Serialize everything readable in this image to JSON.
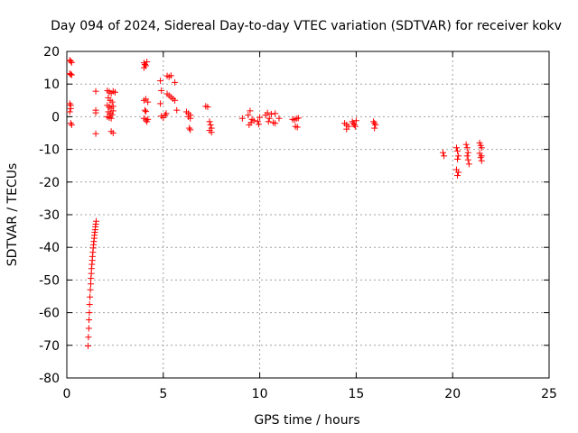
{
  "chart_data": {
    "type": "scatter",
    "title": "Day 094 of 2024, Sidereal Day-to-day VTEC variation (SDTVAR) for receiver kokv",
    "xlabel": "GPS time / hours",
    "ylabel": "SDTVAR / TECUs",
    "xlim": [
      0,
      25
    ],
    "ylim": [
      -80,
      20
    ],
    "xticks": [
      0,
      5,
      10,
      15,
      20,
      25
    ],
    "yticks": [
      20,
      10,
      0,
      -10,
      -20,
      -30,
      -40,
      -50,
      -60,
      -70,
      -80
    ],
    "grid": true,
    "marker": "+",
    "color": "#ff0000",
    "series": [
      {
        "name": "SDTVAR",
        "points": [
          [
            0.15,
            17.3
          ],
          [
            0.2,
            17.0
          ],
          [
            0.25,
            16.6
          ],
          [
            0.15,
            13.2
          ],
          [
            0.2,
            13.0
          ],
          [
            0.25,
            12.8
          ],
          [
            0.15,
            4.0
          ],
          [
            0.2,
            3.5
          ],
          [
            0.2,
            2.5
          ],
          [
            0.15,
            1.5
          ],
          [
            0.2,
            -2.0
          ],
          [
            0.25,
            -2.5
          ],
          [
            1.1,
            -70.2
          ],
          [
            1.12,
            -67.5
          ],
          [
            1.14,
            -64.8
          ],
          [
            1.15,
            -62.2
          ],
          [
            1.17,
            -60.0
          ],
          [
            1.18,
            -57.5
          ],
          [
            1.2,
            -55.2
          ],
          [
            1.22,
            -53.0
          ],
          [
            1.24,
            -51.2
          ],
          [
            1.25,
            -49.5
          ],
          [
            1.27,
            -48.0
          ],
          [
            1.28,
            -46.5
          ],
          [
            1.3,
            -45.2
          ],
          [
            1.32,
            -44.0
          ],
          [
            1.33,
            -42.8
          ],
          [
            1.35,
            -41.5
          ],
          [
            1.37,
            -40.2
          ],
          [
            1.38,
            -39.2
          ],
          [
            1.4,
            -38.2
          ],
          [
            1.42,
            -37.2
          ],
          [
            1.43,
            -36.3
          ],
          [
            1.45,
            -35.4
          ],
          [
            1.47,
            -34.6
          ],
          [
            1.48,
            -33.7
          ],
          [
            1.5,
            -32.9
          ],
          [
            1.52,
            -32.0
          ],
          [
            1.5,
            7.8
          ],
          [
            1.5,
            2.0
          ],
          [
            1.5,
            1.2
          ],
          [
            1.5,
            -5.2
          ],
          [
            2.1,
            8.0
          ],
          [
            2.2,
            7.6
          ],
          [
            2.3,
            7.2
          ],
          [
            2.4,
            7.8
          ],
          [
            2.5,
            7.5
          ],
          [
            2.15,
            5.8
          ],
          [
            2.25,
            5.0
          ],
          [
            2.35,
            4.5
          ],
          [
            2.1,
            3.5
          ],
          [
            2.2,
            3.0
          ],
          [
            2.3,
            2.6
          ],
          [
            2.4,
            3.2
          ],
          [
            2.15,
            1.5
          ],
          [
            2.25,
            1.0
          ],
          [
            2.35,
            0.6
          ],
          [
            2.1,
            0.0
          ],
          [
            2.2,
            -0.3
          ],
          [
            2.3,
            -0.5
          ],
          [
            2.4,
            1.8
          ],
          [
            2.3,
            -4.5
          ],
          [
            2.4,
            -5.0
          ],
          [
            4.0,
            16.5
          ],
          [
            4.05,
            16.0
          ],
          [
            4.1,
            15.6
          ],
          [
            4.0,
            15.0
          ],
          [
            4.15,
            16.8
          ],
          [
            4.0,
            5.0
          ],
          [
            4.1,
            5.4
          ],
          [
            4.2,
            4.5
          ],
          [
            4.05,
            2.0
          ],
          [
            4.1,
            1.6
          ],
          [
            4.0,
            -0.5
          ],
          [
            4.1,
            -1.0
          ],
          [
            4.15,
            -1.5
          ],
          [
            4.2,
            -0.8
          ],
          [
            4.85,
            11.0
          ],
          [
            4.9,
            8.0
          ],
          [
            4.85,
            4.0
          ],
          [
            4.9,
            0.2
          ],
          [
            5.0,
            -0.3
          ],
          [
            5.1,
            0.5
          ],
          [
            5.15,
            1.0
          ],
          [
            5.2,
            12.5
          ],
          [
            5.3,
            12.2
          ],
          [
            5.4,
            12.6
          ],
          [
            5.2,
            7.0
          ],
          [
            5.3,
            6.5
          ],
          [
            5.4,
            6.0
          ],
          [
            5.5,
            5.5
          ],
          [
            5.6,
            10.5
          ],
          [
            5.6,
            5.0
          ],
          [
            5.7,
            2.0
          ],
          [
            6.2,
            1.5
          ],
          [
            6.3,
            1.0
          ],
          [
            6.4,
            0.5
          ],
          [
            6.3,
            0.0
          ],
          [
            6.4,
            -0.5
          ],
          [
            6.35,
            -3.5
          ],
          [
            6.4,
            -4.0
          ],
          [
            7.2,
            3.2
          ],
          [
            7.3,
            3.0
          ],
          [
            7.4,
            -1.5
          ],
          [
            7.45,
            -2.5
          ],
          [
            7.5,
            -3.5
          ],
          [
            7.4,
            -4.2
          ],
          [
            7.5,
            -4.8
          ],
          [
            9.1,
            -0.5
          ],
          [
            9.4,
            0.5
          ],
          [
            9.5,
            1.8
          ],
          [
            9.6,
            -0.8
          ],
          [
            9.55,
            -1.8
          ],
          [
            9.45,
            -2.5
          ],
          [
            9.7,
            -1.2
          ],
          [
            9.9,
            -1.5
          ],
          [
            9.95,
            -2.3
          ],
          [
            10.0,
            -0.2
          ],
          [
            10.3,
            0.5
          ],
          [
            10.4,
            1.2
          ],
          [
            10.5,
            -0.5
          ],
          [
            10.45,
            -1.5
          ],
          [
            10.6,
            0.8
          ],
          [
            10.7,
            -1.8
          ],
          [
            10.8,
            -2.0
          ],
          [
            10.8,
            1.0
          ],
          [
            11.0,
            -0.5
          ],
          [
            11.7,
            -0.8
          ],
          [
            11.8,
            -1.0
          ],
          [
            11.9,
            -0.6
          ],
          [
            11.85,
            -3.0
          ],
          [
            11.95,
            -3.2
          ],
          [
            12.0,
            -0.4
          ],
          [
            14.4,
            -2.0
          ],
          [
            14.5,
            -2.5
          ],
          [
            14.6,
            -3.0
          ],
          [
            14.5,
            -3.8
          ],
          [
            14.8,
            -1.5
          ],
          [
            14.85,
            -2.0
          ],
          [
            14.9,
            -2.5
          ],
          [
            14.95,
            -3.0
          ],
          [
            15.0,
            -1.2
          ],
          [
            15.9,
            -1.5
          ],
          [
            15.95,
            -2.0
          ],
          [
            16.0,
            -2.5
          ],
          [
            15.95,
            -3.5
          ],
          [
            19.5,
            -11.0
          ],
          [
            19.55,
            -12.0
          ],
          [
            20.2,
            -9.5
          ],
          [
            20.25,
            -10.5
          ],
          [
            20.3,
            -12.0
          ],
          [
            20.25,
            -13.0
          ],
          [
            20.2,
            -16.2
          ],
          [
            20.3,
            -17.0
          ],
          [
            20.25,
            -18.0
          ],
          [
            20.7,
            -8.5
          ],
          [
            20.75,
            -9.5
          ],
          [
            20.8,
            -11.0
          ],
          [
            20.75,
            -12.0
          ],
          [
            20.8,
            -13.2
          ],
          [
            20.85,
            -14.5
          ],
          [
            21.4,
            -8.0
          ],
          [
            21.45,
            -8.8
          ],
          [
            21.5,
            -9.5
          ],
          [
            21.4,
            -11.2
          ],
          [
            21.5,
            -12.0
          ],
          [
            21.45,
            -12.5
          ],
          [
            21.5,
            -13.5
          ]
        ]
      }
    ]
  }
}
